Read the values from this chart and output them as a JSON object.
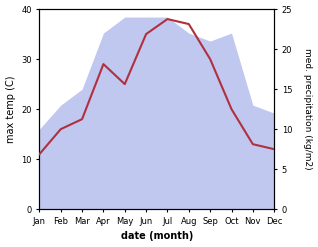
{
  "months": [
    "Jan",
    "Feb",
    "Mar",
    "Apr",
    "May",
    "Jun",
    "Jul",
    "Aug",
    "Sep",
    "Oct",
    "Nov",
    "Dec"
  ],
  "max_temp": [
    11,
    16,
    18,
    29,
    25,
    35,
    38,
    37,
    30,
    20,
    13,
    12
  ],
  "precipitation": [
    10,
    13,
    15,
    22,
    24,
    24,
    24,
    22,
    21,
    22,
    13,
    12
  ],
  "temp_color": "#b03040",
  "precip_fill_color": "#c0c8f0",
  "xlabel": "date (month)",
  "ylabel_left": "max temp (C)",
  "ylabel_right": "med. precipitation (kg/m2)",
  "ylim_left": [
    0,
    40
  ],
  "ylim_right": [
    0,
    25
  ],
  "yticks_left": [
    0,
    10,
    20,
    30,
    40
  ],
  "yticks_right": [
    0,
    5,
    10,
    15,
    20,
    25
  ],
  "background_color": "#ffffff",
  "fig_width": 3.18,
  "fig_height": 2.47,
  "dpi": 100
}
